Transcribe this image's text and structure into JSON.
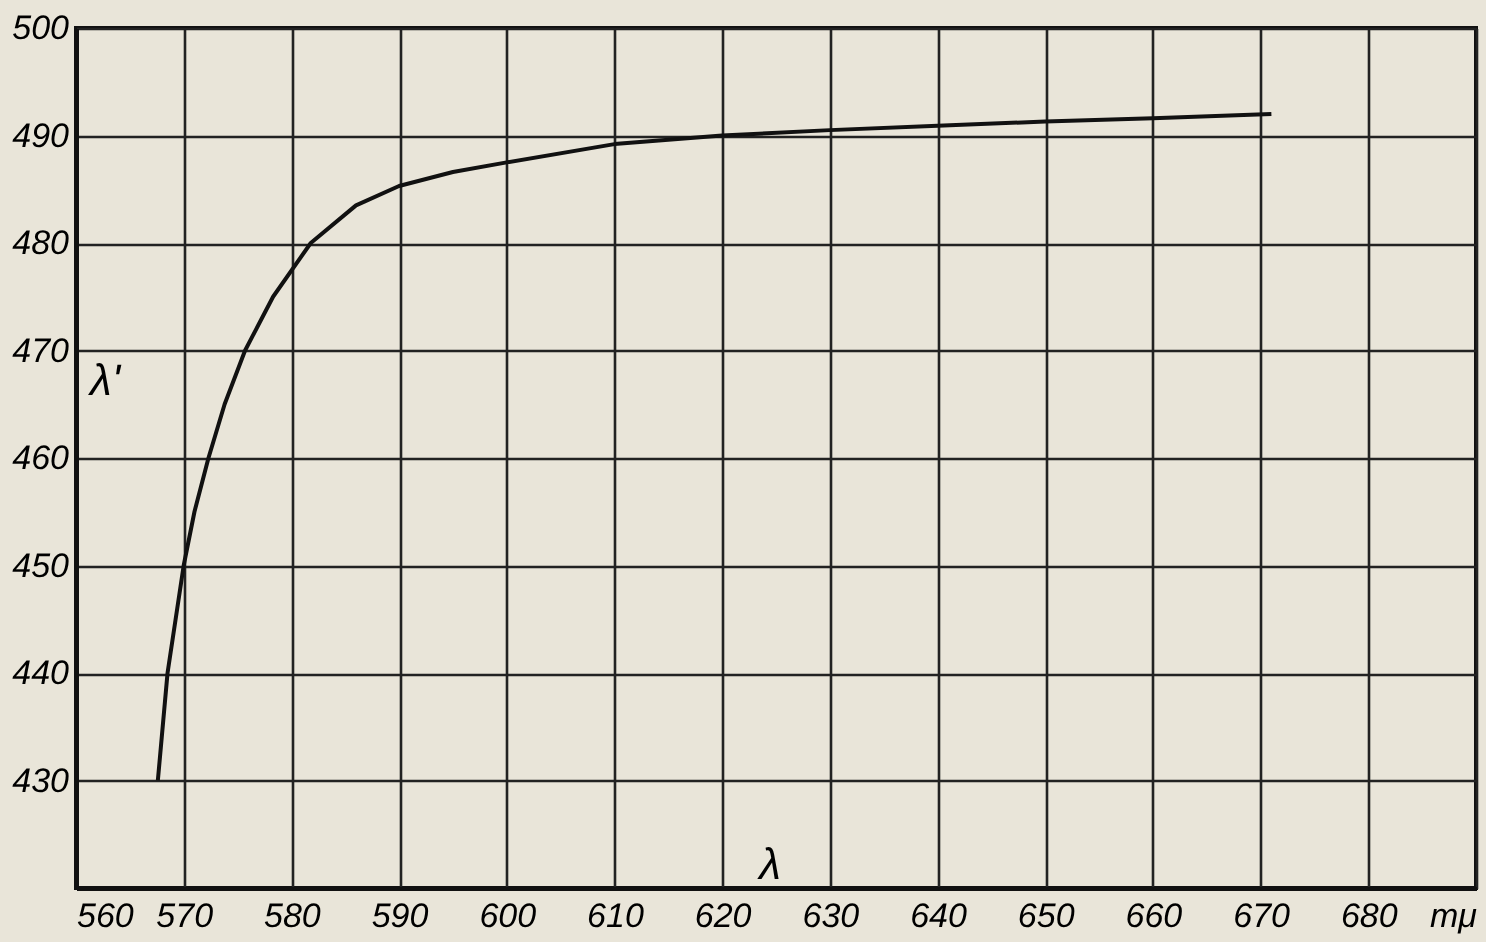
{
  "chart_data": {
    "type": "line",
    "xlabel": "λ",
    "ylabel": "λ'",
    "xlim": [
      560,
      690
    ],
    "ylim": [
      420,
      500
    ],
    "xticks": [
      560,
      570,
      580,
      590,
      600,
      610,
      620,
      630,
      640,
      650,
      660,
      670,
      680,
      {
        "value": 690,
        "label": "mμ"
      }
    ],
    "yticks": [
      430,
      440,
      450,
      460,
      470,
      480,
      490,
      500
    ],
    "grid": true,
    "marker": "none",
    "line_style": "solid",
    "series": [
      {
        "color": "#111111",
        "x": [
          567.6,
          568.5,
          570,
          571,
          572.3,
          573.8,
          575.7,
          578.3,
          581.8,
          586,
          590,
          595,
          600,
          610,
          620,
          630,
          640,
          650,
          660,
          671
        ],
        "values": [
          430,
          440,
          450,
          455,
          460,
          465,
          470,
          475,
          480,
          483.5,
          485.3,
          486.6,
          487.5,
          489.2,
          490,
          490.5,
          490.9,
          491.3,
          491.6,
          492
        ]
      }
    ]
  }
}
